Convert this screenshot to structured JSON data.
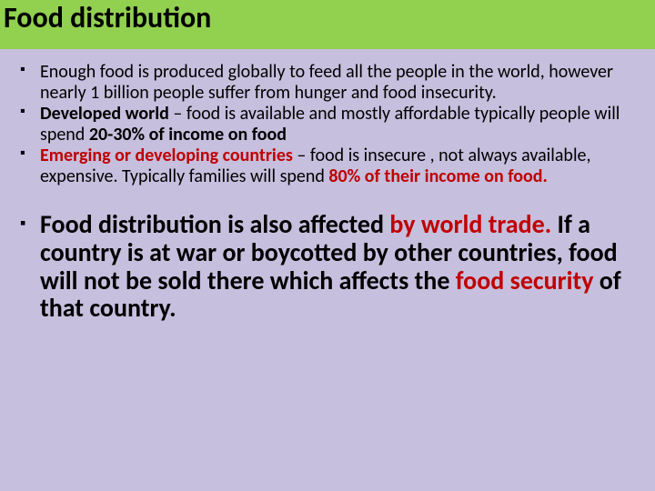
{
  "title": "Food distribution",
  "colors": {
    "title_bg": "#92d050",
    "body_bg": "#c6bfdd",
    "text": "#000000",
    "emphasis": "#c00000"
  },
  "typography": {
    "title_fontsize": 32,
    "bullet_fontsize": 20,
    "large_bullet_fontsize": 28,
    "font_family": "Calibri"
  },
  "bullets": {
    "b1": "Enough food is produced globally to  feed all the people in the world, however nearly 1 billion people suffer from hunger and food insecurity.",
    "b2_lead": "Developed world",
    "b2_mid": " – food is available and mostly affordable typically people will spend ",
    "b2_stat": "20-30% of income on food",
    "b3_lead": "Emerging or developing countries",
    "b3_mid": " – food is insecure , not always available, expensive. Typically families will spend ",
    "b3_stat": "80% of their income on food.",
    "b4_lead": "Food distribution is also affected ",
    "b4_red1": "by world trade. ",
    "b4_mid": "If a country is at war or boycotted by other countries, food will not be sold there which affects the ",
    "b4_red2": "food security ",
    "b4_end": "of that country."
  }
}
